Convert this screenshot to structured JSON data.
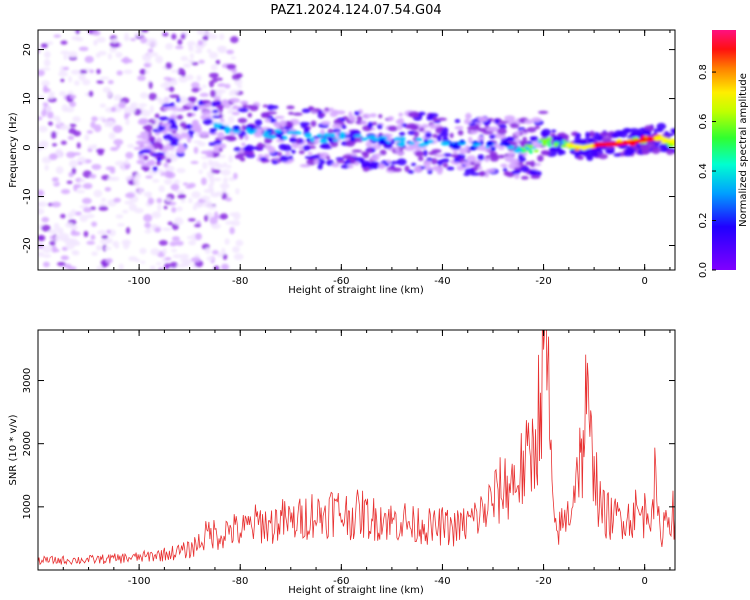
{
  "title": "PAZ1.2024.124.07.54.G04",
  "chart_data": [
    {
      "type": "heatmap",
      "xlabel": "Height of straight line (km)",
      "ylabel": "Frequency (Hz)",
      "xlim": [
        -120,
        6
      ],
      "ylim": [
        -25,
        24
      ],
      "xticks": [
        -100,
        -80,
        -60,
        -40,
        -20,
        0
      ],
      "yticks": [
        -20,
        -10,
        0,
        10,
        20
      ],
      "colorbar": {
        "label": "Normalized spectral amplitude",
        "range": [
          0,
          0.97
        ],
        "ticks": [
          "0.0",
          "0.2",
          "0.4",
          "0.6",
          "0.8"
        ],
        "tick_values": [
          0,
          0.2,
          0.4,
          0.6,
          0.8
        ],
        "colormap": [
          "#f2e6ff",
          "#d6a9ff",
          "#8a2be2",
          "#3d00ff",
          "#0000ff",
          "#00bfff",
          "#00ff80",
          "#7fff00",
          "#ffff00",
          "#ff8000",
          "#ff0000",
          "#ff1493"
        ]
      },
      "signal_trace": {
        "x": [
          -95,
          -90,
          -85,
          -80,
          -75,
          -70,
          -65,
          -60,
          -55,
          -50,
          -45,
          -40,
          -35,
          -30,
          -25,
          -22,
          -20,
          -18,
          -15,
          -12,
          -10,
          -5,
          0,
          3,
          6
        ],
        "y": [
          5,
          4.5,
          4,
          3.5,
          3,
          2.5,
          2,
          2,
          1.5,
          1,
          1,
          0.8,
          0.5,
          0.5,
          0,
          -0.5,
          1.5,
          1,
          0.5,
          0,
          0.5,
          0.8,
          1.5,
          2,
          1
        ]
      }
    },
    {
      "type": "line",
      "xlabel": "Height of straight line (km)",
      "ylabel": "SNR (10 * v/v)",
      "xlim": [
        -120,
        6
      ],
      "ylim": [
        0,
        3800
      ],
      "xticks": [
        -100,
        -80,
        -60,
        -40,
        -20,
        0
      ],
      "yticks": [
        1000,
        2000,
        3000
      ],
      "series": [
        {
          "color": "#e83030",
          "x": [
            -120,
            -110,
            -100,
            -95,
            -90,
            -88,
            -86,
            -84,
            -82,
            -80,
            -78,
            -76,
            -74,
            -72,
            -70,
            -68,
            -66,
            -64,
            -62,
            -60,
            -58,
            -56,
            -54,
            -52,
            -50,
            -48,
            -46,
            -44,
            -42,
            -40,
            -38,
            -36,
            -34,
            -32,
            -30,
            -28,
            -26,
            -24,
            -23,
            -22,
            -21,
            -20,
            -19.5,
            -19,
            -18.5,
            -18,
            -17,
            -16,
            -15,
            -14,
            -13,
            -12.5,
            -12,
            -11.5,
            -11,
            -10.5,
            -10,
            -9.5,
            -9,
            -8,
            -7,
            -6,
            -5,
            -4,
            -3,
            -2,
            -1,
            0,
            1,
            2,
            3,
            4,
            5,
            6
          ],
          "y": [
            150,
            160,
            200,
            250,
            320,
            450,
            600,
            550,
            650,
            600,
            700,
            750,
            700,
            800,
            750,
            800,
            900,
            850,
            950,
            900,
            850,
            900,
            800,
            850,
            750,
            800,
            700,
            750,
            650,
            700,
            650,
            700,
            800,
            900,
            1100,
            1300,
            1400,
            1600,
            1700,
            1900,
            2500,
            3200,
            3700,
            2800,
            1500,
            700,
            650,
            750,
            900,
            1300,
            1850,
            1600,
            2300,
            2650,
            2100,
            1800,
            2000,
            1400,
            1000,
            900,
            850,
            800,
            850,
            900,
            800,
            950,
            850,
            900,
            1000,
            1350,
            550,
            800,
            950,
            850
          ]
        }
      ]
    }
  ]
}
